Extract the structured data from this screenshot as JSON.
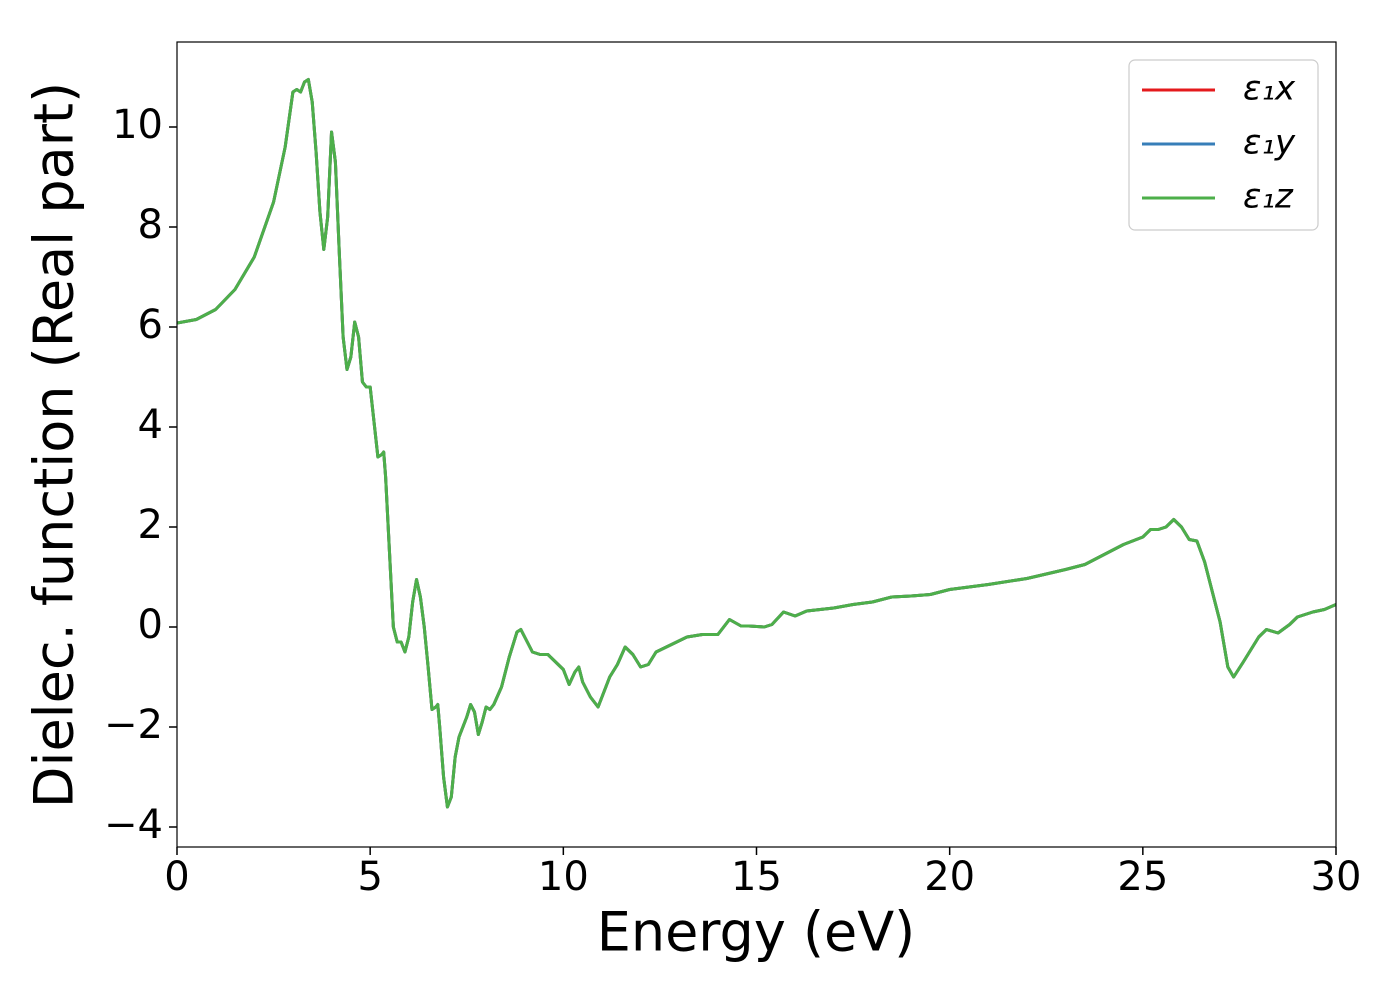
{
  "chart_data": {
    "type": "line",
    "xlabel": "Energy (eV)",
    "ylabel": "Dielec. function (Real part)",
    "xlim": [
      0,
      30
    ],
    "ylim": [
      -4.4,
      11.7
    ],
    "xticks": [
      0,
      5,
      10,
      15,
      20,
      25,
      30
    ],
    "yticks": [
      {
        "value": -4,
        "label": "−4"
      },
      {
        "value": -2,
        "label": "−2"
      },
      0,
      2,
      4,
      6,
      8,
      10
    ],
    "legend": "upper right",
    "x": [
      0,
      0.5,
      1.0,
      1.5,
      2.0,
      2.5,
      2.8,
      3.0,
      3.1,
      3.2,
      3.3,
      3.4,
      3.5,
      3.6,
      3.7,
      3.8,
      3.9,
      4.0,
      4.1,
      4.2,
      4.3,
      4.4,
      4.5,
      4.6,
      4.7,
      4.8,
      4.9,
      5.0,
      5.1,
      5.2,
      5.3,
      5.35,
      5.4,
      5.5,
      5.6,
      5.7,
      5.8,
      5.9,
      6.0,
      6.1,
      6.2,
      6.3,
      6.4,
      6.5,
      6.6,
      6.7,
      6.75,
      6.8,
      6.9,
      7.0,
      7.1,
      7.2,
      7.3,
      7.5,
      7.6,
      7.7,
      7.8,
      7.9,
      8.0,
      8.1,
      8.2,
      8.4,
      8.6,
      8.8,
      8.9,
      9.0,
      9.2,
      9.4,
      9.6,
      9.8,
      10.0,
      10.15,
      10.3,
      10.4,
      10.5,
      10.7,
      10.9,
      11.0,
      11.2,
      11.4,
      11.6,
      11.8,
      12.0,
      12.2,
      12.4,
      12.8,
      13.2,
      13.6,
      14.0,
      14.3,
      14.6,
      14.8,
      15.2,
      15.4,
      15.7,
      16.0,
      16.3,
      17.0,
      17.5,
      18.0,
      18.5,
      19.0,
      19.5,
      20.0,
      21.0,
      22.0,
      23.0,
      23.5,
      24.0,
      24.5,
      25.0,
      25.2,
      25.4,
      25.6,
      25.8,
      26.0,
      26.2,
      26.4,
      26.6,
      26.8,
      27.0,
      27.2,
      27.35,
      27.6,
      28.0,
      28.2,
      28.5,
      28.8,
      29.0,
      29.4,
      29.7,
      30.0
    ],
    "series": [
      {
        "name": "ε₁x",
        "color": "#e41a1c",
        "values": [
          6.08,
          6.15,
          6.35,
          6.75,
          7.4,
          8.5,
          9.6,
          10.7,
          10.75,
          10.7,
          10.9,
          10.95,
          10.5,
          9.5,
          8.3,
          7.55,
          8.2,
          9.9,
          9.3,
          7.5,
          5.8,
          5.15,
          5.4,
          6.1,
          5.8,
          4.9,
          4.8,
          4.8,
          4.1,
          3.4,
          3.45,
          3.5,
          3.0,
          1.5,
          0.0,
          -0.3,
          -0.3,
          -0.5,
          -0.2,
          0.5,
          0.95,
          0.6,
          0.0,
          -0.8,
          -1.65,
          -1.6,
          -1.55,
          -2.0,
          -3.0,
          -3.6,
          -3.4,
          -2.6,
          -2.2,
          -1.8,
          -1.55,
          -1.7,
          -2.15,
          -1.9,
          -1.6,
          -1.65,
          -1.55,
          -1.2,
          -0.6,
          -0.1,
          -0.05,
          -0.2,
          -0.5,
          -0.55,
          -0.55,
          -0.7,
          -0.85,
          -1.15,
          -0.9,
          -0.8,
          -1.1,
          -1.4,
          -1.6,
          -1.4,
          -1.0,
          -0.75,
          -0.4,
          -0.55,
          -0.8,
          -0.75,
          -0.5,
          -0.35,
          -0.2,
          -0.15,
          -0.15,
          0.15,
          0.02,
          0.02,
          0.0,
          0.05,
          0.3,
          0.22,
          0.32,
          0.38,
          0.45,
          0.5,
          0.6,
          0.62,
          0.65,
          0.75,
          0.85,
          0.97,
          1.15,
          1.25,
          1.45,
          1.65,
          1.8,
          1.95,
          1.95,
          2.0,
          2.15,
          2.0,
          1.75,
          1.72,
          1.3,
          0.7,
          0.1,
          -0.8,
          -1.0,
          -0.7,
          -0.2,
          -0.05,
          -0.12,
          0.05,
          0.2,
          0.3,
          0.35,
          0.45
        ]
      },
      {
        "name": "ε₁y",
        "color": "#377eb8",
        "values": [
          6.08,
          6.15,
          6.35,
          6.75,
          7.4,
          8.5,
          9.6,
          10.7,
          10.75,
          10.7,
          10.9,
          10.95,
          10.5,
          9.5,
          8.3,
          7.55,
          8.2,
          9.9,
          9.3,
          7.5,
          5.8,
          5.15,
          5.4,
          6.1,
          5.8,
          4.9,
          4.8,
          4.8,
          4.1,
          3.4,
          3.45,
          3.5,
          3.0,
          1.5,
          0.0,
          -0.3,
          -0.3,
          -0.5,
          -0.2,
          0.5,
          0.95,
          0.6,
          0.0,
          -0.8,
          -1.65,
          -1.6,
          -1.55,
          -2.0,
          -3.0,
          -3.6,
          -3.4,
          -2.6,
          -2.2,
          -1.8,
          -1.55,
          -1.7,
          -2.15,
          -1.9,
          -1.6,
          -1.65,
          -1.55,
          -1.2,
          -0.6,
          -0.1,
          -0.05,
          -0.2,
          -0.5,
          -0.55,
          -0.55,
          -0.7,
          -0.85,
          -1.15,
          -0.9,
          -0.8,
          -1.1,
          -1.4,
          -1.6,
          -1.4,
          -1.0,
          -0.75,
          -0.4,
          -0.55,
          -0.8,
          -0.75,
          -0.5,
          -0.35,
          -0.2,
          -0.15,
          -0.15,
          0.15,
          0.02,
          0.02,
          0.0,
          0.05,
          0.3,
          0.22,
          0.32,
          0.38,
          0.45,
          0.5,
          0.6,
          0.62,
          0.65,
          0.75,
          0.85,
          0.97,
          1.15,
          1.25,
          1.45,
          1.65,
          1.8,
          1.95,
          1.95,
          2.0,
          2.15,
          2.0,
          1.75,
          1.72,
          1.3,
          0.7,
          0.1,
          -0.8,
          -1.0,
          -0.7,
          -0.2,
          -0.05,
          -0.12,
          0.05,
          0.2,
          0.3,
          0.35,
          0.45
        ]
      },
      {
        "name": "ε₁z",
        "color": "#4daf4a",
        "values": [
          6.08,
          6.15,
          6.35,
          6.75,
          7.4,
          8.5,
          9.6,
          10.7,
          10.75,
          10.7,
          10.9,
          10.95,
          10.5,
          9.5,
          8.3,
          7.55,
          8.2,
          9.9,
          9.3,
          7.5,
          5.8,
          5.15,
          5.4,
          6.1,
          5.8,
          4.9,
          4.8,
          4.8,
          4.1,
          3.4,
          3.45,
          3.5,
          3.0,
          1.5,
          0.0,
          -0.3,
          -0.3,
          -0.5,
          -0.2,
          0.5,
          0.95,
          0.6,
          0.0,
          -0.8,
          -1.65,
          -1.6,
          -1.55,
          -2.0,
          -3.0,
          -3.6,
          -3.4,
          -2.6,
          -2.2,
          -1.8,
          -1.55,
          -1.7,
          -2.15,
          -1.9,
          -1.6,
          -1.65,
          -1.55,
          -1.2,
          -0.6,
          -0.1,
          -0.05,
          -0.2,
          -0.5,
          -0.55,
          -0.55,
          -0.7,
          -0.85,
          -1.15,
          -0.9,
          -0.8,
          -1.1,
          -1.4,
          -1.6,
          -1.4,
          -1.0,
          -0.75,
          -0.4,
          -0.55,
          -0.8,
          -0.75,
          -0.5,
          -0.35,
          -0.2,
          -0.15,
          -0.15,
          0.15,
          0.02,
          0.02,
          0.0,
          0.05,
          0.3,
          0.22,
          0.32,
          0.38,
          0.45,
          0.5,
          0.6,
          0.62,
          0.65,
          0.75,
          0.85,
          0.97,
          1.15,
          1.25,
          1.45,
          1.65,
          1.8,
          1.95,
          1.95,
          2.0,
          2.15,
          2.0,
          1.75,
          1.72,
          1.3,
          0.7,
          0.1,
          -0.8,
          -1.0,
          -0.7,
          -0.2,
          -0.05,
          -0.12,
          0.05,
          0.2,
          0.3,
          0.35,
          0.45
        ]
      }
    ]
  }
}
